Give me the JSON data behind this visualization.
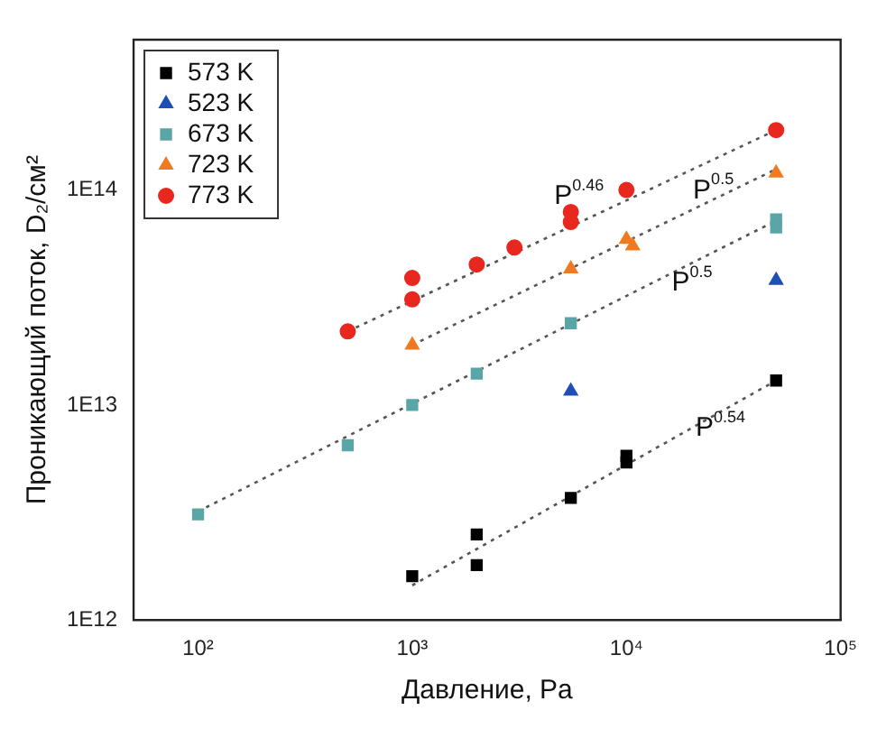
{
  "chart_data": {
    "type": "scatter",
    "xlabel": "Давление, Pa",
    "ylabel": "Проникающий поток, D₂/см²",
    "log": "xy",
    "grid": false,
    "legend": "top left",
    "xlim": [
      50,
      100000
    ],
    "xticks": [
      {
        "value": 100,
        "label": "10²"
      },
      {
        "value": 1000,
        "label": "10³"
      },
      {
        "value": 10000,
        "label": "10⁴"
      },
      {
        "value": 100000,
        "label": "10⁵"
      }
    ],
    "ylim": [
      1000000000000.0,
      500000000000000.0
    ],
    "yticks": [
      {
        "value": 1000000000000.0,
        "label": "1E12"
      },
      {
        "value": 10000000000000.0,
        "label": "1E13"
      },
      {
        "value": 100000000000000.0,
        "label": "1E14"
      }
    ],
    "series": [
      {
        "name": "573 K",
        "color": "#000000",
        "marker": "square",
        "x": [
          1000,
          2000,
          2000,
          5500,
          10000,
          10000,
          50000
        ],
        "values": [
          1600000000000.0,
          1800000000000.0,
          2500000000000.0,
          3700000000000.0,
          5400000000000.0,
          5800000000000.0,
          13000000000000.0
        ]
      },
      {
        "name": "523 K",
        "color": "#1f4fb4",
        "marker": "triangle",
        "x": [
          5500,
          50000
        ],
        "values": [
          11600000000000.0,
          38000000000000.0
        ]
      },
      {
        "name": "673 K",
        "color": "#5aa5a5",
        "marker": "square",
        "x": [
          100,
          500,
          1000,
          2000,
          5500,
          50000,
          50000
        ],
        "values": [
          3100000000000.0,
          6500000000000.0,
          10000000000000.0,
          14000000000000.0,
          24000000000000.0,
          67000000000000.0,
          73000000000000.0
        ]
      },
      {
        "name": "723 K",
        "color": "#f07a20",
        "marker": "triangle",
        "x": [
          1000,
          5500,
          10000,
          10700,
          50000
        ],
        "values": [
          19000000000000.0,
          43000000000000.0,
          59000000000000.0,
          55000000000000.0,
          120000000000000.0
        ]
      },
      {
        "name": "773 K",
        "color": "#e8281e",
        "marker": "circle",
        "x": [
          500,
          1000,
          1000,
          2000,
          3000,
          5500,
          5500,
          10000,
          50000
        ],
        "values": [
          22000000000000.0,
          31000000000000.0,
          39000000000000.0,
          45000000000000.0,
          54000000000000.0,
          71000000000000.0,
          79000000000000.0,
          100000000000000.0,
          190000000000000.0
        ]
      },
      {
        "type": "line",
        "color": "#555555",
        "marker": "none",
        "line_style": "dotted",
        "x": [
          500,
          50000
        ],
        "values": [
          22000000000000.0,
          190000000000000.0
        ]
      },
      {
        "type": "line",
        "color": "#555555",
        "marker": "none",
        "line_style": "dotted",
        "x": [
          1000,
          50000
        ],
        "values": [
          19000000000000.0,
          125000000000000.0
        ]
      },
      {
        "type": "line",
        "color": "#555555",
        "marker": "none",
        "line_style": "dotted",
        "x": [
          100,
          50000
        ],
        "values": [
          3200000000000.0,
          72000000000000.0
        ]
      },
      {
        "type": "line",
        "color": "#555555",
        "marker": "none",
        "line_style": "dotted",
        "x": [
          1000,
          50000
        ],
        "values": [
          1450000000000.0,
          13000000000000.0
        ]
      }
    ],
    "annotations": [
      "P$^{0.46}$",
      "P$^{0.5}$",
      "P$^{0.5}$",
      "P$^{0.54}$"
    ]
  }
}
